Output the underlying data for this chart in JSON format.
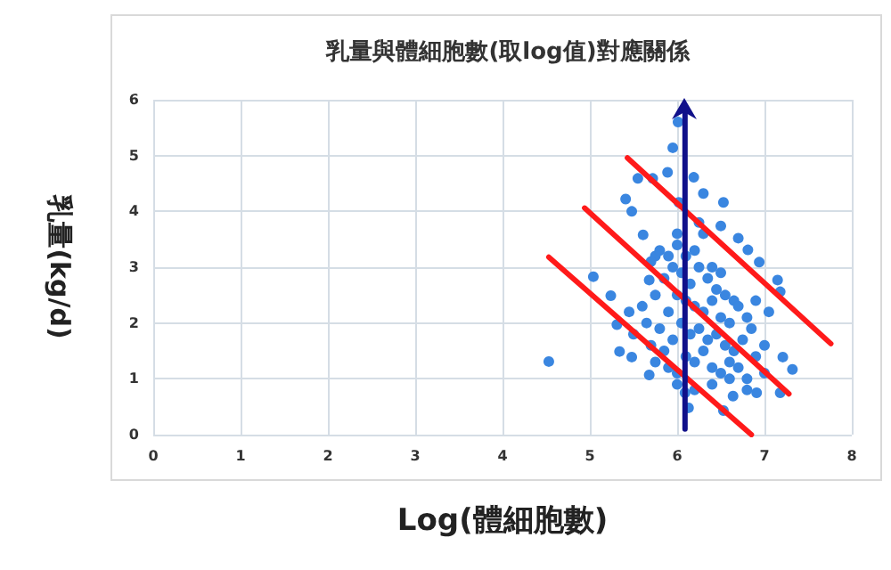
{
  "chart_data": {
    "type": "scatter",
    "title": "乳量與體細胞數(取log值)對應關係",
    "xlabel": "Log(體細胞數)",
    "ylabel": "乳量(kg/d)",
    "xlim": [
      0,
      8
    ],
    "xticks": [
      0,
      1,
      2,
      3,
      4,
      5,
      6,
      7,
      8
    ],
    "ylim": [
      0,
      6
    ],
    "yticks": [
      0,
      1,
      2,
      3,
      4,
      5,
      6
    ],
    "grid": true,
    "series": [
      {
        "color": "#3a86e0",
        "marker": "circle",
        "x": [
          4.53,
          5.04,
          5.24,
          5.31,
          5.41,
          5.48,
          5.55,
          5.72,
          5.89,
          5.95,
          6.01,
          6.02,
          6.19,
          6.3,
          6.53,
          6.5,
          6.7,
          6.81,
          6.94,
          7.15,
          7.18,
          7.21,
          7.32,
          7.18,
          6.91,
          6.64,
          6.53,
          6.13,
          6.09,
          5.68,
          5.48,
          5.34,
          5.61,
          5.75,
          5.68,
          5.6,
          5.7,
          5.8,
          5.9,
          6.0,
          6.1,
          6.2,
          6.3,
          6.4,
          6.5,
          5.65,
          5.75,
          5.85,
          5.95,
          6.05,
          6.15,
          6.25,
          6.35,
          6.45,
          6.55,
          6.65,
          5.7,
          5.8,
          5.9,
          6.0,
          6.1,
          6.2,
          6.3,
          6.4,
          6.5,
          6.6,
          6.7,
          6.8,
          5.75,
          5.85,
          5.95,
          6.05,
          6.15,
          6.25,
          6.35,
          6.45,
          6.55,
          6.65,
          6.75,
          6.85,
          5.9,
          6.0,
          6.1,
          6.2,
          6.3,
          6.4,
          6.5,
          6.6,
          6.7,
          6.8,
          6.9,
          7.0,
          6.0,
          6.2,
          6.4,
          6.6,
          6.8,
          7.0,
          5.5,
          5.45,
          6.9,
          7.05,
          6.25,
          6.0
        ],
        "values": [
          1.31,
          2.83,
          2.49,
          1.97,
          4.22,
          4.0,
          4.59,
          4.59,
          4.7,
          5.14,
          5.6,
          4.16,
          4.61,
          4.32,
          4.16,
          3.74,
          3.52,
          3.31,
          3.09,
          2.77,
          2.56,
          1.39,
          1.17,
          0.75,
          0.75,
          0.69,
          0.43,
          0.48,
          0.75,
          1.07,
          1.39,
          1.49,
          3.58,
          3.2,
          2.77,
          2.3,
          3.1,
          3.3,
          3.2,
          3.4,
          3.2,
          3.3,
          3.6,
          3.0,
          2.9,
          2.0,
          2.5,
          2.8,
          3.0,
          2.9,
          2.7,
          3.0,
          2.8,
          2.6,
          2.5,
          2.4,
          1.6,
          1.9,
          2.2,
          2.5,
          2.4,
          2.3,
          2.2,
          2.4,
          2.1,
          2.0,
          2.3,
          2.1,
          1.3,
          1.5,
          1.7,
          2.0,
          1.8,
          1.9,
          1.7,
          1.8,
          1.6,
          1.5,
          1.7,
          1.9,
          1.2,
          1.1,
          1.4,
          1.3,
          1.5,
          1.2,
          1.1,
          1.3,
          1.2,
          1.0,
          1.4,
          1.6,
          0.9,
          0.8,
          0.9,
          1.0,
          0.8,
          1.1,
          1.8,
          2.2,
          2.4,
          2.2,
          3.8,
          3.6
        ]
      },
      {
        "type": "line",
        "color": "#ff1a1a",
        "x": [
          4.53,
          6.85
        ],
        "values": [
          3.18,
          0.0
        ],
        "marker": "none"
      },
      {
        "type": "line",
        "color": "#ff1a1a",
        "x": [
          4.94,
          7.28
        ],
        "values": [
          4.06,
          0.73
        ],
        "marker": "none"
      },
      {
        "type": "line",
        "color": "#ff1a1a",
        "x": [
          5.43,
          7.76
        ],
        "values": [
          4.96,
          1.63
        ],
        "marker": "none"
      },
      {
        "type": "line",
        "color": "#10108a",
        "x": [
          6.09,
          6.09
        ],
        "values": [
          0.1,
          5.85
        ]
      }
    ]
  }
}
